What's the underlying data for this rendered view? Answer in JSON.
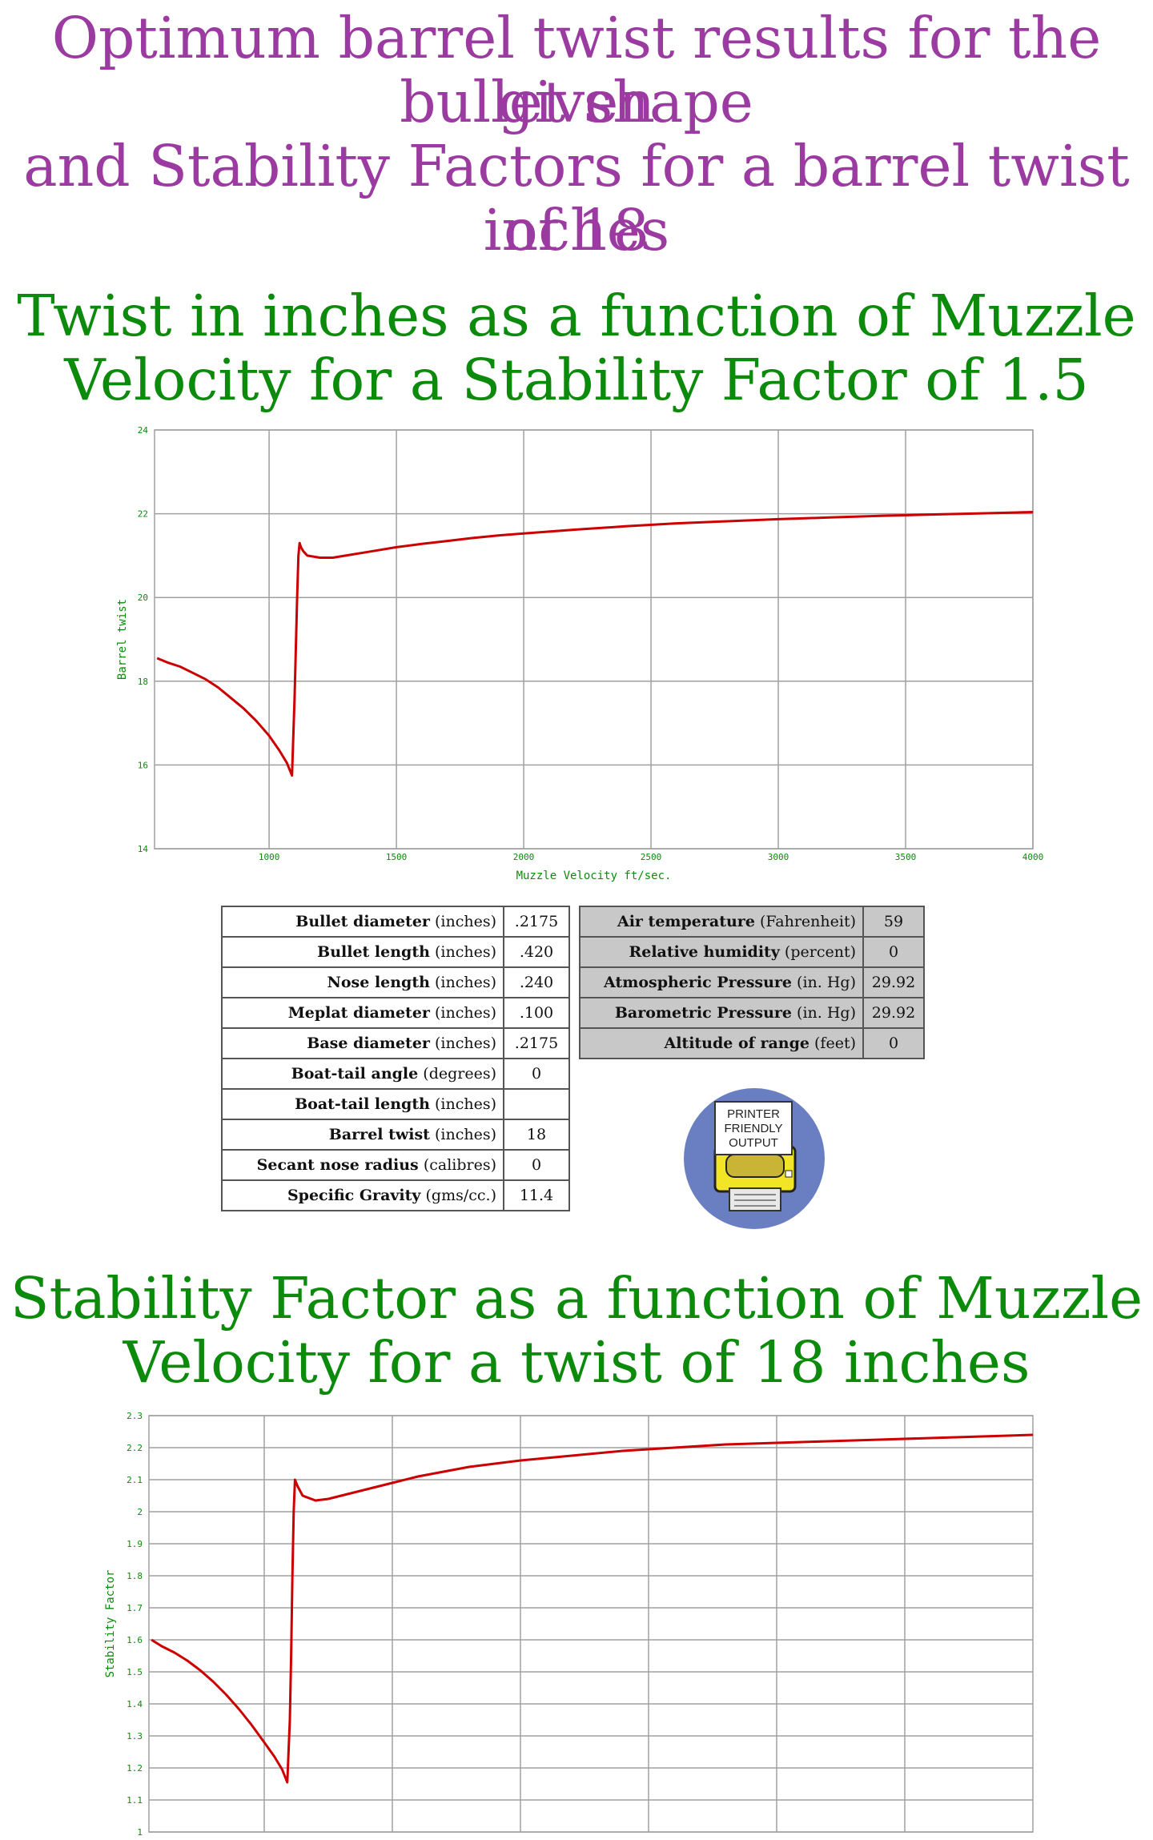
{
  "header": {
    "line1": "Optimum barrel twist results for the given",
    "line2": "bullet shape",
    "line3": "and Stability Factors for a barrel twist of 18",
    "line4": "inches"
  },
  "chart1_title": {
    "line1": "Twist in inches as a function of Muzzle",
    "line2": "Velocity for a Stability Factor of 1.5"
  },
  "chart2_title": {
    "line1": "Stability Factor as a function of Muzzle",
    "line2": "Velocity for a twist of 18 inches"
  },
  "colors": {
    "line": "#cc0000",
    "grid": "#a0a0a0",
    "axis_text": "#0b8a0b",
    "title_purple": "#9b3aa0",
    "title_green": "#0b8a0b"
  },
  "bullet_params": [
    {
      "name": "Bullet diameter",
      "unit": "(inches)",
      "value": ".2175"
    },
    {
      "name": "Bullet length",
      "unit": "(inches)",
      "value": ".420"
    },
    {
      "name": "Nose length",
      "unit": "(inches)",
      "value": ".240"
    },
    {
      "name": "Meplat diameter",
      "unit": "(inches)",
      "value": ".100"
    },
    {
      "name": "Base diameter",
      "unit": "(inches)",
      "value": ".2175"
    },
    {
      "name": "Boat-tail angle",
      "unit": "(degrees)",
      "value": "0"
    },
    {
      "name": "Boat-tail length",
      "unit": "(inches)",
      "value": ""
    },
    {
      "name": "Barrel twist",
      "unit": "(inches)",
      "value": "18"
    },
    {
      "name": "Secant nose radius",
      "unit": "(calibres)",
      "value": "0"
    },
    {
      "name": "Specific Gravity",
      "unit": "(gms/cc.)",
      "value": "11.4"
    }
  ],
  "atmos_params": [
    {
      "name": "Air temperature",
      "unit": "(Fahrenheit)",
      "value": "59"
    },
    {
      "name": "Relative humidity",
      "unit": "(percent)",
      "value": "0"
    },
    {
      "name": "Atmospheric Pressure",
      "unit": "(in. Hg)",
      "value": "29.92"
    },
    {
      "name": "Barometric Pressure",
      "unit": "(in. Hg)",
      "value": "29.92"
    },
    {
      "name": "Altitude of range",
      "unit": "(feet)",
      "value": "0"
    }
  ],
  "printer_button": {
    "line1": "PRINTER",
    "line2": "FRIENDLY",
    "line3": "OUTPUT"
  },
  "chart_data": [
    {
      "type": "line",
      "title": "Twist in inches as a function of Muzzle Velocity for a Stability Factor of 1.5",
      "xlabel": "Muzzle Velocity ft/sec.",
      "ylabel": "Barrel twist",
      "xlim": [
        550,
        4000
      ],
      "ylim": [
        14,
        24
      ],
      "xticks": [
        "1000",
        "1500",
        "2000",
        "2500",
        "3000",
        "3500",
        "4000"
      ],
      "yticks": [
        "14",
        "16",
        "18",
        "20",
        "22",
        "24"
      ],
      "grid": true,
      "series": [
        {
          "x": [
            560,
            600,
            650,
            700,
            750,
            800,
            850,
            900,
            950,
            1000,
            1040,
            1070,
            1090,
            1100,
            1110,
            1115,
            1120,
            1125,
            1135,
            1150,
            1200,
            1250,
            1300,
            1400,
            1500,
            1600,
            1700,
            1800,
            1900,
            2000,
            2200,
            2400,
            2600,
            2800,
            3000,
            3200,
            3400,
            3600,
            3800,
            4000
          ],
          "y": [
            18.55,
            18.45,
            18.35,
            18.2,
            18.05,
            17.85,
            17.6,
            17.35,
            17.05,
            16.7,
            16.35,
            16.05,
            15.75,
            17.6,
            20.0,
            21.0,
            21.3,
            21.2,
            21.1,
            21.0,
            20.95,
            20.95,
            21.0,
            21.1,
            21.2,
            21.28,
            21.35,
            21.42,
            21.48,
            21.53,
            21.62,
            21.7,
            21.77,
            21.82,
            21.87,
            21.91,
            21.95,
            21.98,
            22.01,
            22.04
          ]
        }
      ]
    },
    {
      "type": "line",
      "title": "Stability Factor as a function of Muzzle Velocity for a twist of 18 inches",
      "xlabel": "",
      "ylabel": "Stability Factor",
      "xlim": [
        550,
        4000
      ],
      "ylim": [
        1.0,
        2.3
      ],
      "yticks": [
        "1",
        "1.1",
        "1.2",
        "1.3",
        "1.4",
        "1.5",
        "1.6",
        "1.7",
        "1.8",
        "1.9",
        "2",
        "2.1",
        "2.2",
        "2.3"
      ],
      "grid": true,
      "series": [
        {
          "x": [
            560,
            600,
            650,
            700,
            750,
            800,
            850,
            900,
            950,
            1000,
            1040,
            1070,
            1090,
            1100,
            1105,
            1110,
            1115,
            1120,
            1130,
            1150,
            1200,
            1250,
            1300,
            1400,
            1500,
            1600,
            1700,
            1800,
            1900,
            2000,
            2200,
            2400,
            2600,
            2800,
            3000,
            3200,
            3400,
            3600,
            3800,
            4000
          ],
          "y": [
            1.6,
            1.58,
            1.56,
            1.535,
            1.505,
            1.47,
            1.43,
            1.385,
            1.335,
            1.28,
            1.235,
            1.195,
            1.155,
            1.35,
            1.55,
            1.8,
            2.0,
            2.1,
            2.08,
            2.05,
            2.035,
            2.04,
            2.05,
            2.07,
            2.09,
            2.11,
            2.125,
            2.14,
            2.15,
            2.16,
            2.175,
            2.19,
            2.2,
            2.21,
            2.215,
            2.22,
            2.225,
            2.23,
            2.235,
            2.24
          ]
        }
      ]
    }
  ]
}
